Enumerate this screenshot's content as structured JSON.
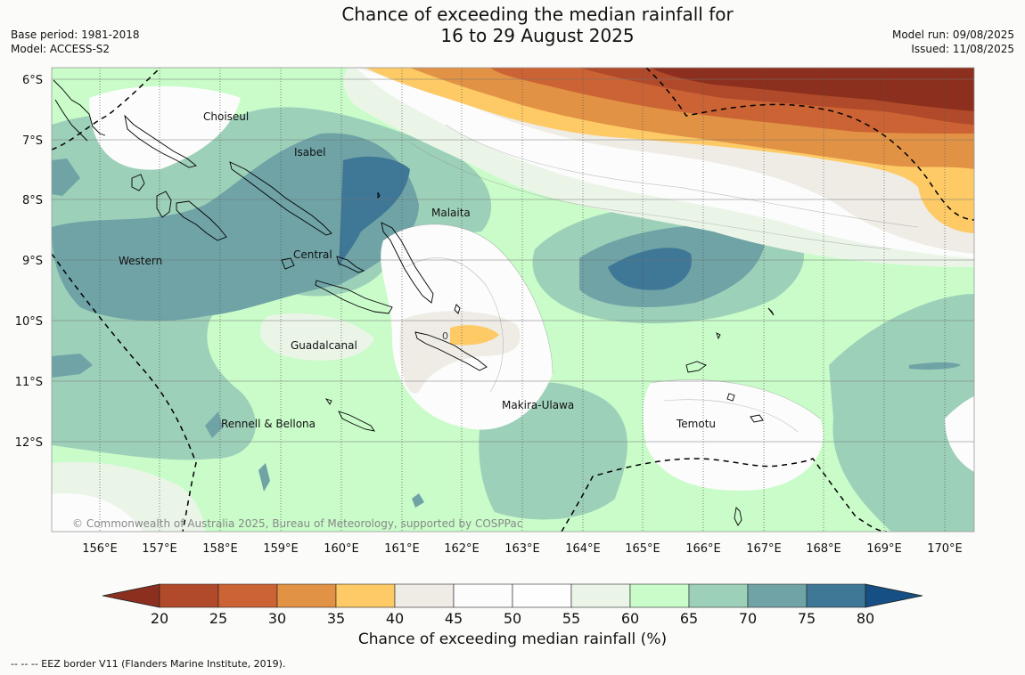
{
  "header": {
    "title_line1": "Chance of exceeding the median rainfall for",
    "title_line2": "16 to 29 August 2025",
    "base_period": "Base period: 1981-2018",
    "model": "Model: ACCESS-S2",
    "model_run": "Model run: 09/08/2025",
    "issued": "Issued: 11/08/2025"
  },
  "map": {
    "lat_labels": [
      "6°S",
      "7°S",
      "8°S",
      "9°S",
      "10°S",
      "11°S",
      "12°S"
    ],
    "lon_labels": [
      "156°E",
      "157°E",
      "158°E",
      "159°E",
      "160°E",
      "161°E",
      "162°E",
      "163°E",
      "164°E",
      "165°E",
      "166°E",
      "167°E",
      "168°E",
      "169°E",
      "170°E"
    ],
    "regions": [
      "Choiseul",
      "Isabel",
      "Malaita",
      "Western",
      "Central",
      "Guadalcanal",
      "Makira-Ulawa",
      "Temotu",
      "Rennell & Bellona"
    ],
    "contour_value_label": "0",
    "copyright": "© Commonwealth of Australia 2025, Bureau of Meteorology, supported by COSPPac"
  },
  "colorbar": {
    "ticks": [
      "20",
      "25",
      "30",
      "35",
      "40",
      "45",
      "50",
      "55",
      "60",
      "65",
      "70",
      "75",
      "80"
    ],
    "colors": [
      "#8c2f1e",
      "#b04a2a",
      "#cb6334",
      "#e29244",
      "#fdca66",
      "#efece6",
      "#fbfcfb",
      "#fefefe",
      "#eaf5e8",
      "#c9fcc9",
      "#9dd0b9",
      "#6fa3a6",
      "#3f7797",
      "#154f83"
    ],
    "title": "Chance of exceeding median rainfall (%)"
  },
  "footer": "--  --  -- EEZ border V11 (Flanders Marine Institute, 2019)."
}
